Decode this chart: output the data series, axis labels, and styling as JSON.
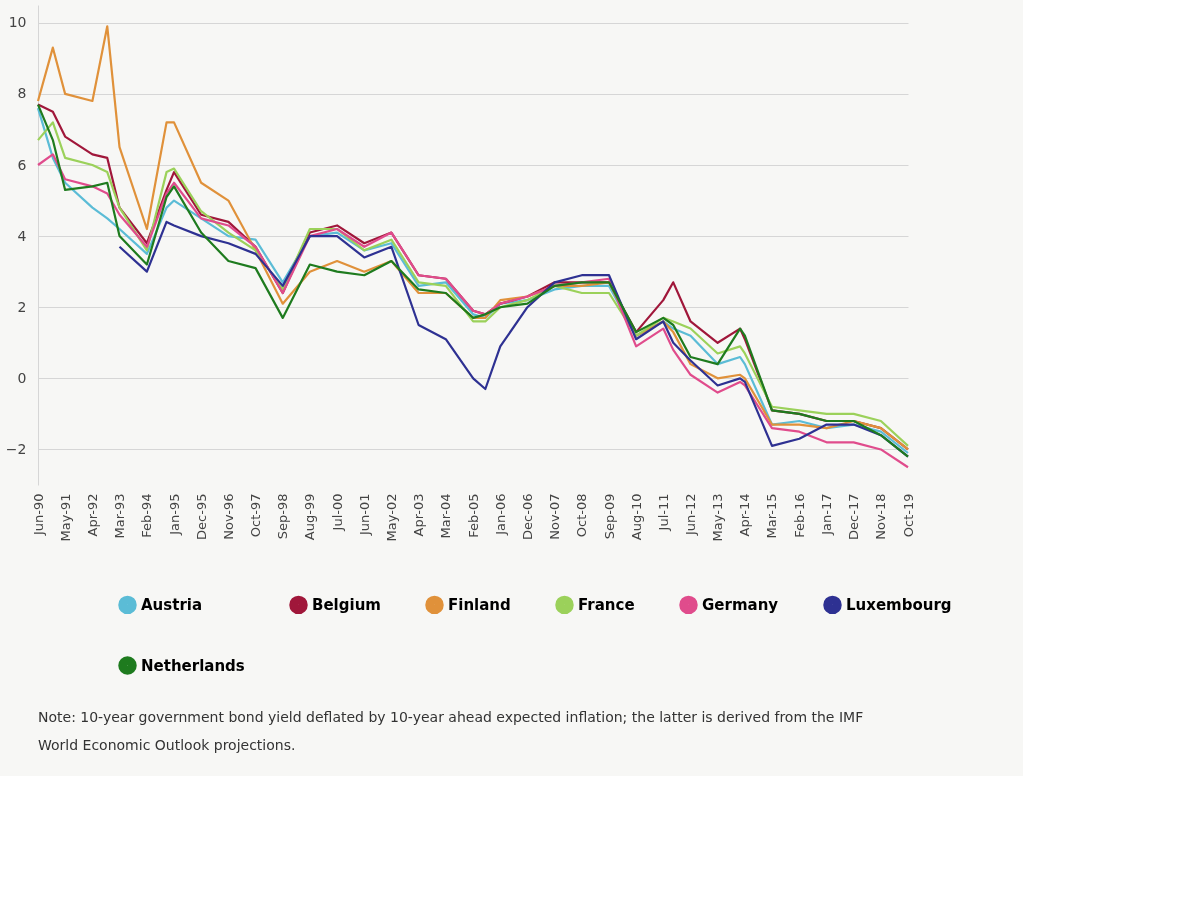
{
  "chart_data": {
    "type": "line",
    "x": [
      "1990-06",
      "1990-12",
      "1991-05",
      "1992-04",
      "1992-10",
      "1993-03",
      "1994-02",
      "1994-10",
      "1995-01",
      "1995-12",
      "1996-11",
      "1997-10",
      "1998-09",
      "1999-08",
      "2000-07",
      "2001-06",
      "2002-05",
      "2003-04",
      "2004-03",
      "2005-02",
      "2005-07",
      "2006-01",
      "2006-12",
      "2007-11",
      "2008-10",
      "2009-09",
      "2010-08",
      "2011-07",
      "2011-11",
      "2012-06",
      "2013-05",
      "2014-02",
      "2014-04",
      "2015-03",
      "2016-02",
      "2017-01",
      "2017-12",
      "2018-11",
      "2019-10"
    ],
    "series": [
      {
        "name": "Austria",
        "color": "#5bbcd6",
        "values": [
          7.6,
          6.2,
          5.5,
          4.8,
          4.5,
          4.2,
          3.5,
          4.8,
          5.0,
          4.5,
          4.0,
          3.9,
          2.7,
          4.0,
          4.1,
          3.6,
          3.8,
          2.6,
          2.7,
          1.8,
          1.7,
          2.1,
          2.2,
          2.5,
          2.6,
          2.6,
          1.2,
          1.6,
          1.4,
          1.2,
          0.4,
          0.6,
          0.4,
          -1.3,
          -1.2,
          -1.4,
          -1.3,
          -1.5,
          -2.1
        ]
      },
      {
        "name": "Belgium",
        "color": "#a0173a",
        "values": [
          7.7,
          7.5,
          6.8,
          6.3,
          6.2,
          4.8,
          3.8,
          5.3,
          5.8,
          4.6,
          4.4,
          3.7,
          2.4,
          4.1,
          4.3,
          3.8,
          4.1,
          2.9,
          2.8,
          1.9,
          1.8,
          2.1,
          2.3,
          2.7,
          2.7,
          2.7,
          1.3,
          2.2,
          2.7,
          1.6,
          1.0,
          1.4,
          1.1,
          -0.9,
          -1.0,
          -1.2,
          -1.2,
          -1.4,
          -2.0
        ]
      },
      {
        "name": "Finland",
        "color": "#e0913a",
        "values": [
          7.8,
          9.3,
          8.0,
          7.8,
          9.9,
          6.5,
          4.2,
          7.2,
          7.2,
          5.5,
          5.0,
          3.6,
          2.1,
          3.0,
          3.3,
          3.0,
          3.3,
          2.4,
          2.4,
          1.7,
          1.7,
          2.2,
          2.3,
          2.6,
          2.6,
          2.7,
          1.2,
          1.6,
          1.3,
          0.4,
          0.0,
          0.1,
          0.0,
          -1.3,
          -1.3,
          -1.4,
          -1.2,
          -1.4,
          -2.0
        ]
      },
      {
        "name": "France",
        "color": "#9bd15a",
        "values": [
          6.7,
          7.2,
          6.2,
          6.0,
          5.8,
          4.8,
          3.6,
          5.8,
          5.9,
          4.7,
          4.1,
          3.6,
          2.5,
          4.2,
          4.2,
          3.6,
          3.9,
          2.7,
          2.6,
          1.6,
          1.6,
          2.0,
          2.2,
          2.6,
          2.4,
          2.4,
          1.2,
          1.7,
          1.6,
          1.4,
          0.7,
          0.9,
          0.7,
          -0.8,
          -0.9,
          -1.0,
          -1.0,
          -1.2,
          -1.9
        ]
      },
      {
        "name": "Germany",
        "color": "#e04c8c",
        "values": [
          6.0,
          6.3,
          5.6,
          5.4,
          5.2,
          4.6,
          3.7,
          5.2,
          5.5,
          4.5,
          4.3,
          3.7,
          2.4,
          4.0,
          4.2,
          3.7,
          4.1,
          2.9,
          2.8,
          1.9,
          1.8,
          2.1,
          2.3,
          2.6,
          2.7,
          2.8,
          0.9,
          1.4,
          0.8,
          0.1,
          -0.4,
          -0.1,
          -0.2,
          -1.4,
          -1.5,
          -1.8,
          -1.8,
          -2.0,
          -2.5
        ]
      },
      {
        "name": "Luxembourg",
        "color": "#2e3192",
        "values": [
          null,
          null,
          null,
          null,
          null,
          3.7,
          3.0,
          4.4,
          4.3,
          4.0,
          3.8,
          3.5,
          2.6,
          4.0,
          4.0,
          3.4,
          3.7,
          1.5,
          1.1,
          0.0,
          -0.3,
          0.9,
          2.0,
          2.7,
          2.9,
          2.9,
          1.1,
          1.6,
          1.0,
          0.5,
          -0.2,
          0.0,
          -0.1,
          -1.9,
          -1.7,
          -1.3,
          -1.3,
          -1.6,
          -2.2
        ]
      },
      {
        "name": "Netherlands",
        "color": "#1e7b1e",
        "values": [
          7.7,
          6.7,
          5.3,
          5.4,
          5.5,
          4.0,
          3.2,
          5.1,
          5.4,
          4.1,
          3.3,
          3.1,
          1.7,
          3.2,
          3.0,
          2.9,
          3.3,
          2.5,
          2.4,
          1.7,
          1.8,
          2.0,
          2.1,
          2.6,
          2.7,
          2.7,
          1.3,
          1.7,
          1.5,
          0.6,
          0.4,
          1.4,
          1.2,
          -0.9,
          -1.0,
          -1.2,
          -1.2,
          -1.6,
          -2.2
        ]
      }
    ],
    "xlim": [
      "1990-06",
      "2019-10"
    ],
    "xticks": [
      {
        "value": "1990-06",
        "label": "Jun-90"
      },
      {
        "value": "1991-05",
        "label": "May-91"
      },
      {
        "value": "1992-04",
        "label": "Apr-92"
      },
      {
        "value": "1993-03",
        "label": "Mar-93"
      },
      {
        "value": "1994-02",
        "label": "Feb-94"
      },
      {
        "value": "1995-01",
        "label": "Jan-95"
      },
      {
        "value": "1995-12",
        "label": "Dec-95"
      },
      {
        "value": "1996-11",
        "label": "Nov-96"
      },
      {
        "value": "1997-10",
        "label": "Oct-97"
      },
      {
        "value": "1998-09",
        "label": "Sep-98"
      },
      {
        "value": "1999-08",
        "label": "Aug-99"
      },
      {
        "value": "2000-07",
        "label": "Jul-00"
      },
      {
        "value": "2001-06",
        "label": "Jun-01"
      },
      {
        "value": "2002-05",
        "label": "May-02"
      },
      {
        "value": "2003-04",
        "label": "Apr-03"
      },
      {
        "value": "2004-03",
        "label": "Mar-04"
      },
      {
        "value": "2005-02",
        "label": "Feb-05"
      },
      {
        "value": "2006-01",
        "label": "Jan-06"
      },
      {
        "value": "2006-12",
        "label": "Dec-06"
      },
      {
        "value": "2007-11",
        "label": "Nov-07"
      },
      {
        "value": "2008-10",
        "label": "Oct-08"
      },
      {
        "value": "2009-09",
        "label": "Sep-09"
      },
      {
        "value": "2010-08",
        "label": "Aug-10"
      },
      {
        "value": "2011-07",
        "label": "Jul-11"
      },
      {
        "value": "2012-06",
        "label": "Jun-12"
      },
      {
        "value": "2013-05",
        "label": "May-13"
      },
      {
        "value": "2014-04",
        "label": "Apr-14"
      },
      {
        "value": "2015-03",
        "label": "Mar-15"
      },
      {
        "value": "2016-02",
        "label": "Feb-16"
      },
      {
        "value": "2017-01",
        "label": "Jan-17"
      },
      {
        "value": "2017-12",
        "label": "Dec-17"
      },
      {
        "value": "2018-11",
        "label": "Nov-18"
      },
      {
        "value": "2019-10",
        "label": "Oct-19"
      }
    ],
    "ylim": [
      -3,
      10.5
    ],
    "yticks": [
      -2,
      0,
      2,
      4,
      6,
      8,
      10
    ],
    "grid": "y",
    "legend": "bottom",
    "marker": "none",
    "line_style": "solid",
    "annotations": [
      "Note: 10-year government bond yield deflated by 10-year ahead expected inflation; the latter is derived from the IMF World Economic Outlook projections."
    ]
  }
}
